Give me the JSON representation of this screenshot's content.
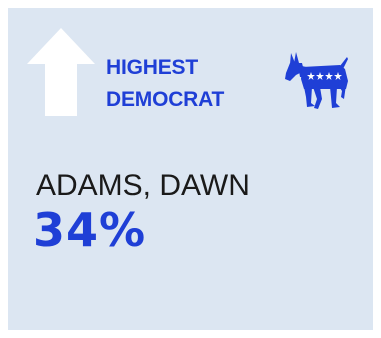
{
  "card": {
    "label_line1": "HIGHEST",
    "label_line2": "DEMOCRAT",
    "candidate_name": "ADAMS, DAWN",
    "percentage": "34%"
  },
  "icons": {
    "arrow": "up-arrow-icon",
    "party": "democrat-donkey-icon"
  },
  "colors": {
    "background": "#dce6f2",
    "accent": "#1f3fd6",
    "arrow": "#ffffff",
    "text": "#1a1a1a"
  }
}
